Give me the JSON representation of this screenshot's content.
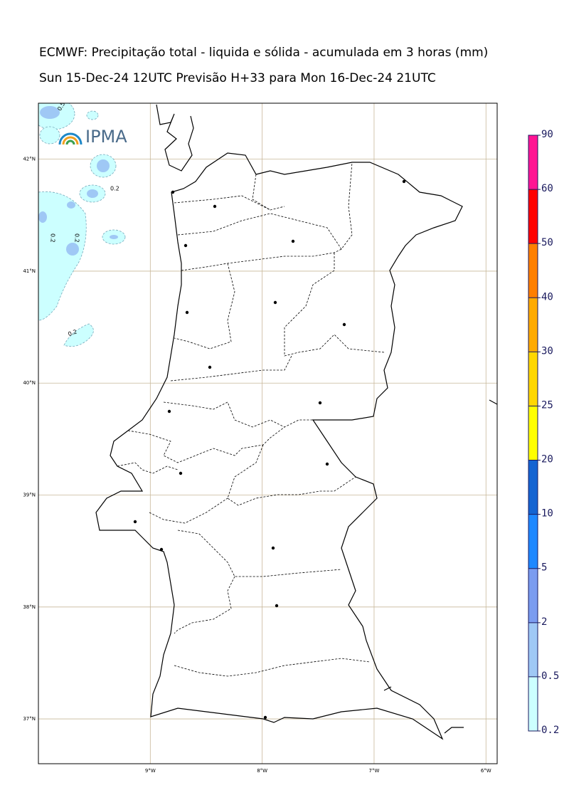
{
  "title": "ECMWF: Precipitação total - liquida e sólida - acumulada em 3 horas (mm)",
  "subtitle": "Sun 15-Dec-24 12UTC Previsão H+33 para Mon 16-Dec-24 21UTC",
  "logo": "IPMA",
  "map": {
    "xlim": [
      -10,
      -5.9
    ],
    "ylim": [
      36.6,
      42.5
    ],
    "lat_ticks": [
      {
        "value": 42,
        "label": "42°N"
      },
      {
        "value": 41,
        "label": "41°N"
      },
      {
        "value": 40,
        "label": "40°N"
      },
      {
        "value": 39,
        "label": "39°N"
      },
      {
        "value": 38,
        "label": "38°N"
      },
      {
        "value": 37,
        "label": "37°N"
      }
    ],
    "lon_ticks": [
      {
        "value": -9,
        "label": "9°W"
      },
      {
        "value": -8,
        "label": "8°W"
      },
      {
        "value": -7,
        "label": "7°W"
      },
      {
        "value": -6,
        "label": "6°W"
      }
    ],
    "grid_color": "#c8b89a"
  },
  "colorbar": {
    "levels": [
      0.2,
      0.5,
      2,
      5,
      10,
      20,
      25,
      30,
      40,
      50,
      60,
      90
    ],
    "colors": [
      "#ccffff",
      "#9fc8f5",
      "#7b9cf0",
      "#1e88ff",
      "#1464d2",
      "#ffff00",
      "#ffd700",
      "#ffaa00",
      "#ff7f00",
      "#ff0000",
      "#ff1493"
    ]
  },
  "contour_labels": [
    "0.5",
    "0.2",
    "0.2",
    "0.2",
    "0.2"
  ]
}
